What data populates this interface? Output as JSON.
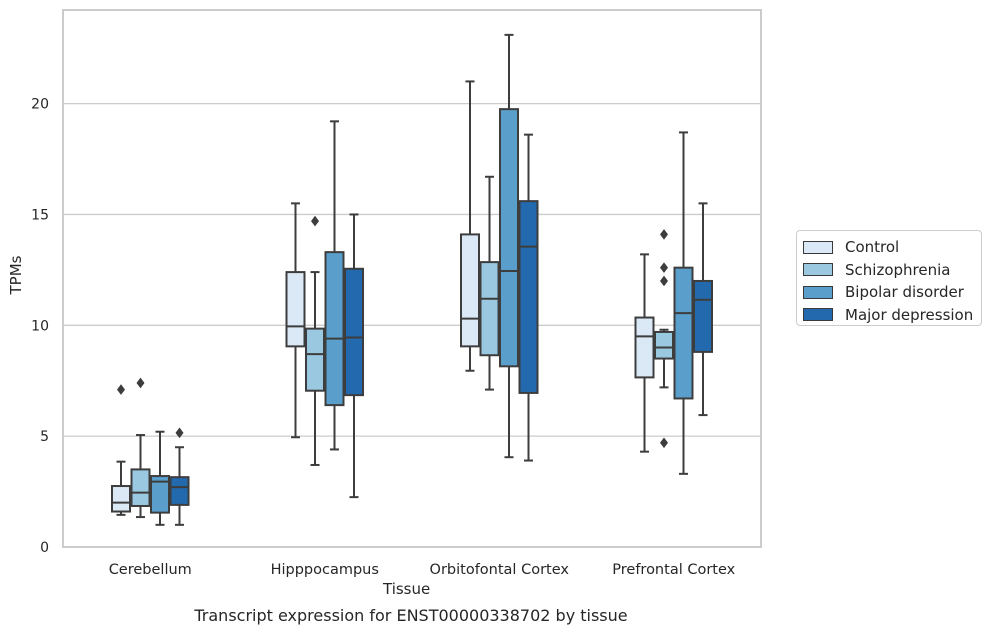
{
  "chart_data": {
    "type": "box",
    "xlabel": "Tissue",
    "ylabel": "TPMs",
    "caption": "Transcript expression for ENST00000338702 by tissue",
    "ylim": [
      0,
      24
    ],
    "yticks": [
      0,
      5,
      10,
      15,
      20
    ],
    "grid": "horizontal",
    "legend_position": "right",
    "categories": [
      "Cerebellum",
      "Hipppocampus",
      "Orbitofontal Cortex",
      "Prefrontal Cortex"
    ],
    "series": [
      {
        "name": "Control",
        "color": "#dbe9f6",
        "boxes": [
          {
            "whisker_low": 1.45,
            "q1": 1.6,
            "median": 2.0,
            "q3": 2.75,
            "whisker_high": 3.85,
            "outliers": [
              7.1
            ]
          },
          {
            "whisker_low": 4.95,
            "q1": 9.05,
            "median": 9.95,
            "q3": 12.4,
            "whisker_high": 15.5,
            "outliers": []
          },
          {
            "whisker_low": 7.95,
            "q1": 9.05,
            "median": 10.3,
            "q3": 14.1,
            "whisker_high": 21.0,
            "outliers": []
          },
          {
            "whisker_low": 4.3,
            "q1": 7.65,
            "median": 9.5,
            "q3": 10.35,
            "whisker_high": 13.2,
            "outliers": []
          }
        ]
      },
      {
        "name": "Schizophrenia",
        "color": "#9ac8e0",
        "boxes": [
          {
            "whisker_low": 1.35,
            "q1": 1.85,
            "median": 2.45,
            "q3": 3.5,
            "whisker_high": 5.05,
            "outliers": [
              7.4
            ]
          },
          {
            "whisker_low": 3.7,
            "q1": 7.05,
            "median": 8.7,
            "q3": 9.85,
            "whisker_high": 12.4,
            "outliers": [
              14.7
            ]
          },
          {
            "whisker_low": 7.1,
            "q1": 8.65,
            "median": 11.2,
            "q3": 12.85,
            "whisker_high": 16.7,
            "outliers": []
          },
          {
            "whisker_low": 7.2,
            "q1": 8.5,
            "median": 9.0,
            "q3": 9.7,
            "whisker_high": 9.8,
            "outliers": [
              4.7,
              12.0,
              12.6,
              14.1
            ]
          }
        ]
      },
      {
        "name": "Bipolar disorder",
        "color": "#5a9fcc",
        "boxes": [
          {
            "whisker_low": 1.0,
            "q1": 1.55,
            "median": 2.95,
            "q3": 3.2,
            "whisker_high": 5.2,
            "outliers": []
          },
          {
            "whisker_low": 4.4,
            "q1": 6.4,
            "median": 9.4,
            "q3": 13.3,
            "whisker_high": 19.2,
            "outliers": []
          },
          {
            "whisker_low": 4.05,
            "q1": 8.15,
            "median": 12.45,
            "q3": 19.75,
            "whisker_high": 23.1,
            "outliers": []
          },
          {
            "whisker_low": 3.3,
            "q1": 6.7,
            "median": 10.55,
            "q3": 12.6,
            "whisker_high": 18.7,
            "outliers": []
          }
        ]
      },
      {
        "name": "Major depression",
        "color": "#2369ad",
        "boxes": [
          {
            "whisker_low": 1.0,
            "q1": 1.9,
            "median": 2.7,
            "q3": 3.15,
            "whisker_high": 4.5,
            "outliers": [
              5.15
            ]
          },
          {
            "whisker_low": 2.25,
            "q1": 6.85,
            "median": 9.45,
            "q3": 12.55,
            "whisker_high": 15.0,
            "outliers": []
          },
          {
            "whisker_low": 3.9,
            "q1": 6.95,
            "median": 13.55,
            "q3": 15.6,
            "whisker_high": 18.6,
            "outliers": []
          },
          {
            "whisker_low": 5.95,
            "q1": 8.8,
            "median": 11.15,
            "q3": 12.0,
            "whisker_high": 15.5,
            "outliers": []
          }
        ]
      }
    ]
  }
}
